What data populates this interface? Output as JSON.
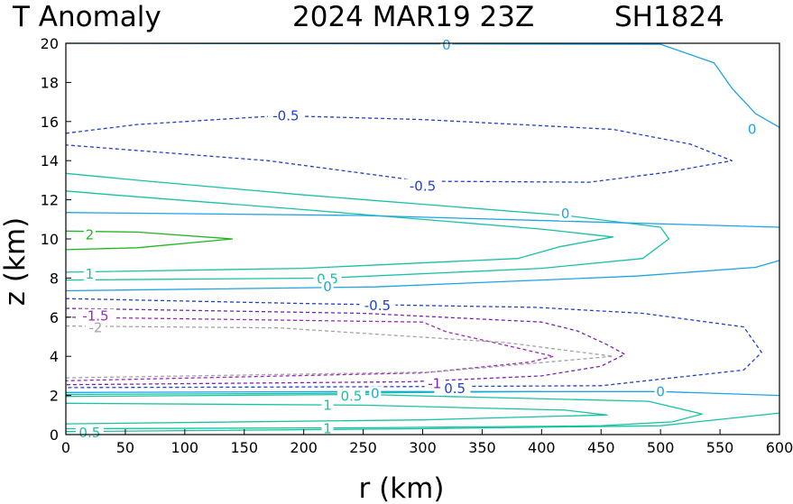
{
  "chart_data": {
    "type": "contour",
    "title": {
      "field": "T Anomaly",
      "datetime": "2024 MAR19 23Z",
      "storm": "SH1824"
    },
    "xlabel": "r (km)",
    "ylabel": "z (km)",
    "xlim": [
      0,
      600
    ],
    "ylim": [
      0,
      20
    ],
    "xticks": [
      "0",
      "50",
      "100",
      "150",
      "200",
      "250",
      "300",
      "350",
      "400",
      "450",
      "500",
      "550",
      "600"
    ],
    "yticks": [
      "0",
      "2",
      "4",
      "6",
      "8",
      "10",
      "12",
      "14",
      "16",
      "18",
      "20"
    ],
    "levels": [
      {
        "id": "t2",
        "value": 2,
        "color": "#22b522",
        "dashed": false,
        "paths": [
          [
            [
              0,
              10.4
            ],
            [
              60,
              10.35
            ],
            [
              140,
              10.0
            ],
            [
              60,
              9.55
            ],
            [
              0,
              9.45
            ]
          ]
        ],
        "labels": [
          {
            "text": "2",
            "r": 20,
            "z": 10.2
          }
        ]
      },
      {
        "id": "t1-upper",
        "value": 1,
        "color": "#19c2a2",
        "dashed": false,
        "paths": [
          [
            [
              0,
              12.45
            ],
            [
              40,
              12.25
            ],
            [
              200,
              11.5
            ],
            [
              400,
              10.5
            ],
            [
              460,
              10.1
            ],
            [
              415,
              9.6
            ],
            [
              380,
              9.0
            ],
            [
              200,
              8.5
            ],
            [
              0,
              8.3
            ]
          ]
        ],
        "labels": [
          {
            "text": "1",
            "r": 20,
            "z": 8.2
          }
        ]
      },
      {
        "id": "t05-upper",
        "value": 0.5,
        "color": "#19c2a2",
        "dashed": false,
        "paths": [
          [
            [
              0,
              13.35
            ],
            [
              60,
              13.0
            ],
            [
              200,
              12.25
            ],
            [
              420,
              11.2
            ],
            [
              500,
              10.6
            ],
            [
              507,
              10.0
            ],
            [
              485,
              9.0
            ],
            [
              400,
              8.5
            ],
            [
              220,
              8.0
            ],
            [
              0,
              7.9
            ]
          ]
        ],
        "labels": [
          {
            "text": "0.5",
            "r": 220,
            "z": 7.95
          }
        ]
      },
      {
        "id": "t0-top",
        "value": 0,
        "color": "#1ea3e3",
        "dashed": false,
        "paths": [
          [
            [
              0,
              20.0
            ],
            [
              500,
              19.95
            ],
            [
              545,
              19.0
            ],
            [
              560,
              17.7
            ],
            [
              580,
              16.4
            ],
            [
              600,
              15.7
            ]
          ]
        ],
        "labels": [
          {
            "text": "0",
            "r": 320,
            "z": 19.9
          },
          {
            "text": "0",
            "r": 577,
            "z": 15.6
          }
        ]
      },
      {
        "id": "t0-mid",
        "value": 0,
        "color": "#1ea3e3",
        "dashed": false,
        "paths": [
          [
            [
              600,
              8.9
            ],
            [
              580,
              8.55
            ],
            [
              480,
              8.1
            ],
            [
              260,
              7.55
            ],
            [
              0,
              7.35
            ]
          ],
          [
            [
              0,
              11.35
            ],
            [
              250,
              11.2
            ],
            [
              600,
              10.6
            ]
          ]
        ],
        "labels": [
          {
            "text": "0",
            "r": 220,
            "z": 7.55
          },
          {
            "text": "0",
            "r": 420,
            "z": 11.3
          }
        ]
      },
      {
        "id": "tm05-upper",
        "value": -0.5,
        "color": "#2040c8",
        "dashed": true,
        "paths": [
          [
            [
              0,
              15.4
            ],
            [
              60,
              15.85
            ],
            [
              180,
              16.3
            ],
            [
              300,
              16.1
            ],
            [
              460,
              15.6
            ],
            [
              525,
              14.85
            ],
            [
              560,
              14.0
            ],
            [
              505,
              13.4
            ],
            [
              440,
              12.9
            ],
            [
              300,
              12.95
            ],
            [
              170,
              14.0
            ],
            [
              0,
              14.8
            ]
          ]
        ],
        "labels": [
          {
            "text": "-0.5",
            "r": 185,
            "z": 16.3
          },
          {
            "text": "-0.5",
            "r": 300,
            "z": 12.7
          }
        ]
      },
      {
        "id": "tm05-lower",
        "value": -0.5,
        "color": "#2040c8",
        "dashed": true,
        "paths": [
          [
            [
              0,
              6.95
            ],
            [
              200,
              6.7
            ],
            [
              395,
              6.5
            ],
            [
              485,
              6.2
            ],
            [
              570,
              5.5
            ],
            [
              585,
              4.2
            ],
            [
              570,
              3.3
            ],
            [
              450,
              2.5
            ],
            [
              290,
              2.45
            ],
            [
              0,
              2.4
            ]
          ]
        ],
        "labels": [
          {
            "text": "-0.5",
            "r": 262,
            "z": 6.6
          },
          {
            "text": "-0.5",
            "r": 325,
            "z": 2.35
          }
        ]
      },
      {
        "id": "tm1",
        "value": -1,
        "color": "#7a22b0",
        "dashed": true,
        "paths": [
          [
            [
              0,
              6.45
            ],
            [
              250,
              6.2
            ],
            [
              400,
              5.75
            ],
            [
              430,
              5.3
            ],
            [
              455,
              4.6
            ],
            [
              470,
              4.1
            ],
            [
              450,
              3.5
            ],
            [
              400,
              3.0
            ],
            [
              290,
              2.7
            ],
            [
              0,
              2.55
            ]
          ]
        ],
        "labels": [
          {
            "text": "-1",
            "r": 310,
            "z": 2.6
          }
        ]
      },
      {
        "id": "tm15",
        "value": -1.5,
        "color": "#9d28b5",
        "dashed": true,
        "paths": [
          [
            [
              0,
              6.0
            ],
            [
              300,
              5.75
            ],
            [
              320,
              5.25
            ],
            [
              360,
              4.7
            ],
            [
              410,
              4.0
            ],
            [
              390,
              3.7
            ],
            [
              300,
              3.15
            ],
            [
              0,
              2.75
            ]
          ]
        ],
        "labels": [
          {
            "text": "-1.5",
            "r": 25,
            "z": 6.05
          }
        ]
      },
      {
        "id": "tm2",
        "value": -2,
        "color": "#a3a3a3",
        "dashed": true,
        "paths": [
          [
            [
              0,
              5.55
            ],
            [
              180,
              5.45
            ],
            [
              370,
              4.7
            ],
            [
              460,
              4.0
            ],
            [
              310,
              3.2
            ],
            [
              0,
              2.9
            ]
          ]
        ],
        "labels": [
          {
            "text": "-2",
            "r": 25,
            "z": 5.45
          }
        ]
      },
      {
        "id": "t05-lower",
        "value": 0.5,
        "color": "#19c2a2",
        "dashed": false,
        "paths": [
          [
            [
              0,
              0.15
            ],
            [
              300,
              0.3
            ],
            [
              500,
              0.45
            ],
            [
              600,
              1.1
            ]
          ],
          [
            [
              0,
              2.05
            ],
            [
              200,
              2.1
            ],
            [
              400,
              2.2
            ]
          ]
        ],
        "labels": [
          {
            "text": "0.5",
            "r": 20,
            "z": 0.1
          },
          {
            "text": "0.5",
            "r": 240,
            "z": 1.95
          }
        ]
      },
      {
        "id": "t1-lower",
        "value": 1,
        "color": "#19c2a2",
        "dashed": false,
        "paths": [
          [
            [
              0,
              0.55
            ],
            [
              300,
              0.75
            ],
            [
              420,
              0.95
            ],
            [
              455,
              1.0
            ],
            [
              420,
              1.25
            ],
            [
              250,
              1.5
            ],
            [
              0,
              1.6
            ]
          ],
          [
            [
              0,
              1.95
            ],
            [
              250,
              2.05
            ],
            [
              490,
              1.7
            ],
            [
              535,
              1.05
            ],
            [
              510,
              0.65
            ],
            [
              450,
              0.45
            ],
            [
              260,
              0.35
            ],
            [
              0,
              0.3
            ]
          ]
        ],
        "labels": [
          {
            "text": "1",
            "r": 220,
            "z": 1.5
          },
          {
            "text": "1",
            "r": 220,
            "z": 0.3
          }
        ]
      },
      {
        "id": "t0-lower",
        "value": 0,
        "color": "#1ea3e3",
        "dashed": false,
        "paths": [
          [
            [
              0,
              2.15
            ],
            [
              240,
              2.2
            ],
            [
              500,
              2.2
            ],
            [
              600,
              2.0
            ]
          ]
        ],
        "labels": [
          {
            "text": "0",
            "r": 260,
            "z": 2.1
          },
          {
            "text": "0",
            "r": 500,
            "z": 2.2
          }
        ]
      }
    ]
  }
}
